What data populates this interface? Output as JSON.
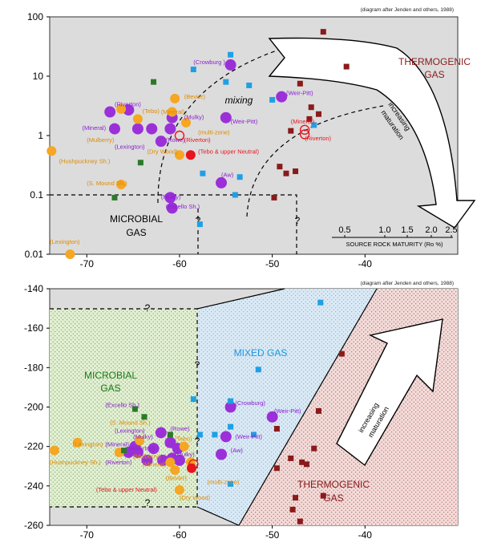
{
  "colors": {
    "panel_bg": "#dcdcdc",
    "sample_purple": "#9b30d9",
    "sample_orange": "#f5a623",
    "sample_blue": "#1ea0e6",
    "sample_green": "#2a7a2a",
    "sample_darkred": "#8b1a1a",
    "sample_red": "#e8141e",
    "label_purple": "#8a1fd0",
    "label_orange": "#e08a00",
    "microbial_text": "#1a7a1a",
    "mixed_text": "#1e96e0",
    "thermo_text": "#8b1a1a",
    "microbial_fill": "#e2efd2",
    "mixed_fill": "#dbeaf5",
    "thermo_fill": "#f1dcda"
  },
  "chart_data": [
    {
      "type": "scatter",
      "title": "",
      "note": "(diagram after Jenden and others, 1988)",
      "x_ticks": [
        "-70",
        "-60",
        "-50",
        "-40"
      ],
      "y_ticks": [
        "0.01",
        "0.1",
        "1",
        "10",
        "100"
      ],
      "xlim": [
        -74,
        -30
      ],
      "ylim": [
        0.01,
        100
      ],
      "yscale": "log",
      "grid": false,
      "zone_labels": {
        "microbial": [
          "MICROBIAL",
          "GAS"
        ],
        "thermogenic": [
          "THERMOGENIC",
          "GAS"
        ],
        "mixing": "mixing",
        "arrow": [
          "increasing",
          "maturation"
        ],
        "question": "?"
      },
      "maturity_scale": {
        "title": "SOURCE ROCK MATURITY (Ro %)",
        "ticks": [
          "0.5",
          "1.0",
          "1.5",
          "2.0",
          "2.5"
        ]
      },
      "labels": [
        {
          "text": "(Crowburg )",
          "x": -58.5,
          "y": 16,
          "color": "purple"
        },
        {
          "text": "(Bevier)",
          "x": -59.5,
          "y": 4.2,
          "color": "orange"
        },
        {
          "text": "(Riverton)",
          "x": -67,
          "y": 3.1,
          "color": "purple"
        },
        {
          "text": "(Tebo)",
          "x": -64,
          "y": 2.4,
          "color": "orange"
        },
        {
          "text": "(Mineral)",
          "x": -70.5,
          "y": 1.25,
          "color": "purple"
        },
        {
          "text": "(Mineral)",
          "x": -62,
          "y": 2.3,
          "color": "orange"
        },
        {
          "text": "(Mulky)",
          "x": -59.5,
          "y": 1.9,
          "color": "purple"
        },
        {
          "text": "(Weir-Pitt)",
          "x": -48.5,
          "y": 4.8,
          "color": "purple"
        },
        {
          "text": "(Weir-Pitt)",
          "x": -54.5,
          "y": 1.6,
          "color": "purple"
        },
        {
          "text": "(Mulberry)",
          "x": -70,
          "y": 0.78,
          "color": "orange"
        },
        {
          "text": "(Lexington)",
          "x": -67,
          "y": 0.6,
          "color": "purple"
        },
        {
          "text": "(Rowe)",
          "x": -61.5,
          "y": 0.78,
          "color": "purple"
        },
        {
          "text": "(multi-zone)",
          "x": -58,
          "y": 1.05,
          "color": "orange"
        },
        {
          "text": "(Riverton)",
          "x": -59.5,
          "y": 0.78,
          "color": "red"
        },
        {
          "text": "(Dry Wood)",
          "x": -63.5,
          "y": 0.5,
          "color": "orange"
        },
        {
          "text": "(Tebo & upper Neutral)",
          "x": -58,
          "y": 0.5,
          "color": "red"
        },
        {
          "text": "(Mineral)",
          "x": -48,
          "y": 1.6,
          "color": "red"
        },
        {
          "text": "(Riverton)",
          "x": -46.5,
          "y": 0.83,
          "color": "red"
        },
        {
          "text": "(Hushpuckney Sh.)",
          "x": -73,
          "y": 0.34,
          "color": "orange"
        },
        {
          "text": "(Aw)",
          "x": -55.5,
          "y": 0.2,
          "color": "purple"
        },
        {
          "text": "(S. Mound Sh.)",
          "x": -70,
          "y": 0.145,
          "color": "orange"
        },
        {
          "text": "(Mulky)",
          "x": -62,
          "y": 0.086,
          "color": "purple"
        },
        {
          "text": "(Excello Sh.)",
          "x": -61.5,
          "y": 0.059,
          "color": "purple"
        },
        {
          "text": "(Lexington)",
          "x": -74,
          "y": 0.015,
          "color": "orange"
        }
      ],
      "series": [
        {
          "marker": "circle",
          "color": "purple",
          "points": [
            [
              -54.5,
              15.5
            ],
            [
              -49,
              4.5
            ],
            [
              -67.5,
              2.5
            ],
            [
              -64.5,
              1.3
            ],
            [
              -65.5,
              2.7
            ],
            [
              -67,
              1.3
            ],
            [
              -63,
              1.3
            ],
            [
              -61,
              1.3
            ],
            [
              -60.8,
              2
            ],
            [
              -62,
              0.8
            ],
            [
              -55,
              2
            ],
            [
              -55.5,
              0.16
            ],
            [
              -61,
              0.09
            ],
            [
              -60.8,
              0.06
            ]
          ]
        },
        {
          "marker": "circle",
          "color": "orange",
          "points": [
            [
              -60.5,
              4.2
            ],
            [
              -60.8,
              2.5
            ],
            [
              -64.5,
              1.9
            ],
            [
              -66.3,
              2.8
            ],
            [
              -59.3,
              1.65
            ],
            [
              -60,
              0.47
            ],
            [
              -73.8,
              0.55
            ],
            [
              -66.3,
              0.15
            ],
            [
              -71.8,
              0.01
            ]
          ]
        },
        {
          "marker": "open-circle",
          "color": "red",
          "points": [
            [
              -60,
              1
            ],
            [
              -46.5,
              1.25
            ],
            [
              -46.5,
              1.05
            ]
          ]
        },
        {
          "marker": "circle",
          "color": "red",
          "points": [
            [
              -58.8,
              0.47
            ]
          ]
        },
        {
          "marker": "square",
          "color": "blue",
          "points": [
            [
              -54.5,
              23
            ],
            [
              -58.5,
              13
            ],
            [
              -55,
              8
            ],
            [
              -52.5,
              7
            ],
            [
              -50,
              4
            ],
            [
              -45.5,
              1.5
            ],
            [
              -57.5,
              0.23
            ],
            [
              -53.5,
              0.2
            ],
            [
              -54,
              0.1
            ],
            [
              -57.8,
              0.032
            ]
          ]
        },
        {
          "marker": "square",
          "color": "green",
          "points": [
            [
              -62.8,
              8
            ],
            [
              -64.2,
              0.35
            ],
            [
              -67,
              0.09
            ]
          ]
        },
        {
          "marker": "square",
          "color": "darkred",
          "points": [
            [
              -44.5,
              56
            ],
            [
              -42,
              14.5
            ],
            [
              -47,
              7.5
            ],
            [
              -45.8,
              3
            ],
            [
              -45,
              2.3
            ],
            [
              -46,
              1.9
            ],
            [
              -48,
              1.2
            ],
            [
              -49.2,
              0.3
            ],
            [
              -48.5,
              0.23
            ],
            [
              -47.5,
              0.25
            ],
            [
              -49.8,
              0.09
            ]
          ]
        }
      ]
    },
    {
      "type": "scatter",
      "title": "",
      "note": "(diagram after Jenden and others, 1988)",
      "x_ticks": [
        "-70",
        "-60",
        "-50",
        "-40"
      ],
      "y_ticks": [
        "-140",
        "-160",
        "-180",
        "-200",
        "-220",
        "-240",
        "-260"
      ],
      "xlim": [
        -74,
        -30
      ],
      "ylim": [
        -260,
        -140
      ],
      "grid": false,
      "zone_labels": {
        "microbial": [
          "MICROBIAL",
          "GAS"
        ],
        "mixed": "MIXED GAS",
        "thermogenic": [
          "THERMOGENIC",
          "GAS"
        ],
        "arrow": [
          "increasing",
          "maturation"
        ],
        "question": "?"
      },
      "labels": [
        {
          "text": "(Crowburg)",
          "x": -54,
          "y": -199,
          "color": "purple"
        },
        {
          "text": "(Weir-Pitt)",
          "x": -49.8,
          "y": -203,
          "color": "purple"
        },
        {
          "text": "(Excello Sh.)",
          "x": -68,
          "y": -200,
          "color": "purple"
        },
        {
          "text": "(S. Mound Sh.)",
          "x": -67.5,
          "y": -209,
          "color": "orange"
        },
        {
          "text": "(Lexington)",
          "x": -67,
          "y": -213,
          "color": "purple"
        },
        {
          "text": "(Rowe)",
          "x": -61,
          "y": -212,
          "color": "purple"
        },
        {
          "text": "(Mulky)",
          "x": -65,
          "y": -216,
          "color": "purple"
        },
        {
          "text": "(Tebo)",
          "x": -60.5,
          "y": -217,
          "color": "orange"
        },
        {
          "text": "(Lexington)",
          "x": -71.5,
          "y": -220,
          "color": "orange"
        },
        {
          "text": "(Mineral)",
          "x": -68,
          "y": -220,
          "color": "purple"
        },
        {
          "text": "(Weir-Pitt)",
          "x": -54,
          "y": -216,
          "color": "purple"
        },
        {
          "text": "(Riverton)",
          "x": -65.5,
          "y": -222,
          "color": "purple"
        },
        {
          "text": "(Mulberry)",
          "x": -65,
          "y": -226,
          "color": "orange"
        },
        {
          "text": "(Mulky)",
          "x": -60.5,
          "y": -225,
          "color": "purple"
        },
        {
          "text": "(Aw)",
          "x": -54.5,
          "y": -223,
          "color": "purple"
        },
        {
          "text": "(Mineral)",
          "x": -64,
          "y": -230,
          "color": "orange"
        },
        {
          "text": "(Hushpuckney Sh.)",
          "x": -74,
          "y": -229,
          "color": "orange"
        },
        {
          "text": "(Riverton)",
          "x": -68,
          "y": -229,
          "color": "purple"
        },
        {
          "text": "(Bevier)",
          "x": -61.5,
          "y": -237,
          "color": "orange"
        },
        {
          "text": "(multi-zone)",
          "x": -57,
          "y": -239,
          "color": "orange"
        },
        {
          "text": "(Tebo & upper Neutral)",
          "x": -69,
          "y": -243,
          "color": "red"
        },
        {
          "text": "(Dry Wood)",
          "x": -60,
          "y": -247,
          "color": "orange"
        }
      ],
      "series": [
        {
          "marker": "circle",
          "color": "purple",
          "points": [
            [
              -54.5,
              -200
            ],
            [
              -50,
              -205
            ],
            [
              -62,
              -213
            ],
            [
              -64.8,
              -220
            ],
            [
              -65.5,
              -223
            ],
            [
              -64.5,
              -223
            ],
            [
              -62.8,
              -221
            ],
            [
              -61,
              -218
            ],
            [
              -60.2,
              -221
            ],
            [
              -63.5,
              -227
            ],
            [
              -61.8,
              -227
            ],
            [
              -60.8,
              -226
            ],
            [
              -60,
              -227
            ],
            [
              -55,
              -215
            ],
            [
              -55.5,
              -224
            ]
          ]
        },
        {
          "marker": "circle",
          "color": "orange",
          "points": [
            [
              -71,
              -218
            ],
            [
              -73.5,
              -222
            ],
            [
              -64.3,
              -217
            ],
            [
              -59.5,
              -220
            ],
            [
              -61,
              -228
            ],
            [
              -60.5,
              -232
            ],
            [
              -58.8,
              -228
            ],
            [
              -60,
              -242
            ],
            [
              -66.5,
              -223
            ]
          ]
        },
        {
          "marker": "open-circle",
          "color": "red",
          "points": [
            [
              -58.5,
              -229
            ]
          ]
        },
        {
          "marker": "circle",
          "color": "red",
          "points": [
            [
              -58.7,
              -231
            ]
          ]
        },
        {
          "marker": "square",
          "color": "blue",
          "points": [
            [
              -44.8,
              -147
            ],
            [
              -51.5,
              -181
            ],
            [
              -58.5,
              -196
            ],
            [
              -54.5,
              -197
            ],
            [
              -54.5,
              -210
            ],
            [
              -52,
              -214
            ],
            [
              -57.8,
              -214
            ],
            [
              -56.2,
              -214
            ],
            [
              -54.5,
              -239
            ]
          ]
        },
        {
          "marker": "square",
          "color": "green",
          "points": [
            [
              -64.8,
              -201
            ],
            [
              -63.8,
              -205
            ],
            [
              -66,
              -222
            ],
            [
              -61,
              -214
            ]
          ]
        },
        {
          "marker": "square",
          "color": "darkred",
          "points": [
            [
              -42.5,
              -173
            ],
            [
              -45,
              -202
            ],
            [
              -49.5,
              -211
            ],
            [
              -48,
              -226
            ],
            [
              -46.8,
              -228
            ],
            [
              -46.3,
              -229
            ],
            [
              -45.5,
              -221
            ],
            [
              -49.5,
              -231
            ],
            [
              -47.5,
              -246
            ],
            [
              -47.8,
              -252
            ],
            [
              -47,
              -258
            ],
            [
              -44.5,
              -245
            ]
          ]
        }
      ]
    }
  ]
}
